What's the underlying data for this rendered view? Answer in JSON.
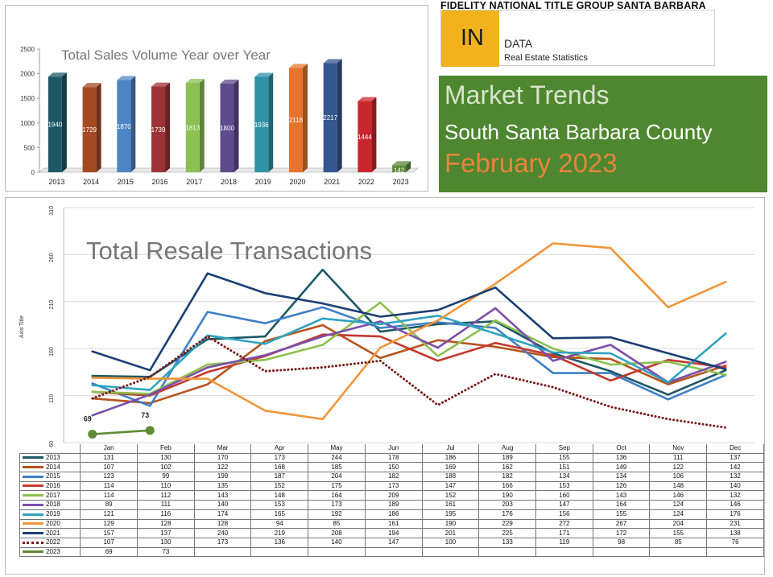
{
  "bar_chart": {
    "type": "bar",
    "title": "Total Sales Volume Year over Year",
    "categories": [
      "2013",
      "2014",
      "2015",
      "2016",
      "2017",
      "2018",
      "2019",
      "2020",
      "2021",
      "2022",
      "2023"
    ],
    "values": [
      1940,
      1729,
      1870,
      1739,
      1813,
      1800,
      1936,
      2118,
      2217,
      1444,
      142
    ],
    "colors": [
      "#1d5866",
      "#a44a22",
      "#4d86c4",
      "#9b3238",
      "#8cc152",
      "#5f4a8b",
      "#2f93a8",
      "#e8742b",
      "#34578f",
      "#c9262c",
      "#5a8a3a"
    ],
    "y_ticks": [
      "0",
      "500",
      "1000",
      "1500",
      "2000",
      "2500"
    ],
    "ylim": [
      0,
      2500
    ]
  },
  "brand": {
    "title": "FIDELITY NATIONAL TITLE GROUP SANTA BARBARA",
    "in_label": "IN",
    "data_label": "DATA",
    "subtitle": "Real Estate Statistics"
  },
  "market_trends": {
    "heading": "Market Trends",
    "region": "South Santa Barbara County",
    "period": "February 2023"
  },
  "chart_data": {
    "type": "line",
    "title": "Total Resale Transactions",
    "ylabel": "Axis Title",
    "xlabel": "",
    "ylim": [
      60,
      310
    ],
    "y_ticks": [
      "60",
      "110",
      "160",
      "210",
      "260",
      "310"
    ],
    "categories": [
      "Jan",
      "Feb",
      "Mar",
      "Apr",
      "May",
      "Jun",
      "Jul",
      "Aug",
      "Sep",
      "Oct",
      "Nov",
      "Dec"
    ],
    "series": [
      {
        "name": "2013",
        "color": "#1d5866",
        "values": [
          131,
          130,
          170,
          173,
          244,
          178,
          186,
          189,
          155,
          136,
          111,
          137
        ]
      },
      {
        "name": "2014",
        "color": "#b6541d",
        "values": [
          107,
          102,
          122,
          168,
          185,
          150,
          169,
          162,
          151,
          149,
          122,
          142
        ]
      },
      {
        "name": "2015",
        "color": "#3f7fc6",
        "values": [
          123,
          99,
          199,
          187,
          204,
          182,
          188,
          182,
          134,
          134,
          106,
          132
        ]
      },
      {
        "name": "2016",
        "color": "#c23a30",
        "values": [
          114,
          110,
          135,
          152,
          175,
          173,
          147,
          166,
          153,
          126,
          148,
          140
        ]
      },
      {
        "name": "2017",
        "color": "#8dc04f",
        "values": [
          114,
          112,
          143,
          148,
          164,
          209,
          152,
          190,
          160,
          143,
          146,
          132
        ]
      },
      {
        "name": "2018",
        "color": "#7b4fa8",
        "values": [
          89,
          111,
          140,
          153,
          173,
          189,
          161,
          203,
          147,
          164,
          124,
          146
        ]
      },
      {
        "name": "2019",
        "color": "#2fa3c0",
        "values": [
          121,
          116,
          174,
          165,
          192,
          186,
          195,
          176,
          156,
          155,
          124,
          176
        ]
      },
      {
        "name": "2020",
        "color": "#f0953a",
        "values": [
          129,
          128,
          128,
          94,
          85,
          161,
          190,
          229,
          272,
          267,
          204,
          231
        ]
      },
      {
        "name": "2021",
        "color": "#1c3f74",
        "values": [
          157,
          137,
          240,
          219,
          208,
          194,
          201,
          225,
          171,
          172,
          155,
          138
        ]
      },
      {
        "name": "2022",
        "color": "#7a1a1a",
        "dotted": true,
        "values": [
          107,
          130,
          173,
          136,
          140,
          147,
          100,
          133,
          119,
          98,
          85,
          76
        ]
      },
      {
        "name": "2023",
        "color": "#5e8a35",
        "markers": true,
        "values": [
          69,
          73,
          null,
          null,
          null,
          null,
          null,
          null,
          null,
          null,
          null,
          null
        ]
      }
    ],
    "data_labels": [
      "69",
      "73"
    ]
  }
}
